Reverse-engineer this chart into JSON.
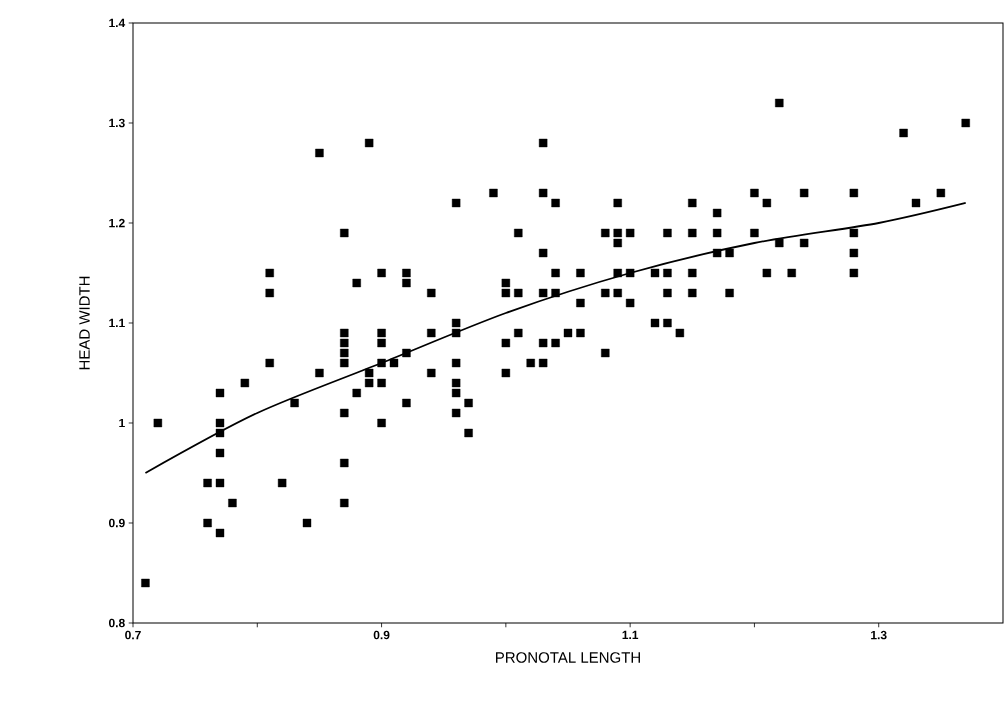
{
  "chart_data": {
    "type": "scatter",
    "xlabel": "PRONOTAL LENGTH",
    "ylabel": "HEAD WIDTH",
    "xlim": [
      0.7,
      1.4
    ],
    "ylim": [
      0.8,
      1.4
    ],
    "xticks": [
      0.7,
      {
        "value": 0.8,
        "label": null
      },
      0.9,
      {
        "value": 1.0,
        "label": null
      },
      1.1,
      {
        "value": 1.2,
        "label": null
      },
      1.3
    ],
    "yticks": [
      0.8,
      0.9,
      1,
      1.1,
      1.2,
      1.3,
      1.4
    ],
    "series": [
      {
        "marker": "square",
        "color": "#000000",
        "x": [
          0.71,
          0.72,
          0.76,
          0.76,
          0.77,
          0.77,
          0.77,
          0.77,
          0.77,
          0.77,
          0.78,
          0.79,
          0.81,
          0.81,
          0.81,
          0.82,
          0.83,
          0.84,
          0.85,
          0.85,
          0.87,
          0.87,
          0.87,
          0.87,
          0.87,
          0.87,
          0.87,
          0.87,
          0.88,
          0.88,
          0.89,
          0.89,
          0.89,
          0.9,
          0.9,
          0.9,
          0.9,
          0.9,
          0.9,
          0.91,
          0.92,
          0.92,
          0.92,
          0.92,
          0.94,
          0.94,
          0.94,
          0.96,
          0.96,
          0.96,
          0.96,
          0.96,
          0.96,
          0.96,
          0.97,
          0.97,
          0.99,
          1.0,
          1.0,
          1.0,
          1.0,
          1.01,
          1.01,
          1.01,
          1.02,
          1.03,
          1.03,
          1.03,
          1.03,
          1.03,
          1.03,
          1.04,
          1.04,
          1.04,
          1.04,
          1.05,
          1.06,
          1.06,
          1.06,
          1.08,
          1.08,
          1.08,
          1.09,
          1.09,
          1.09,
          1.09,
          1.09,
          1.1,
          1.1,
          1.1,
          1.12,
          1.12,
          1.13,
          1.13,
          1.13,
          1.13,
          1.14,
          1.15,
          1.15,
          1.15,
          1.15,
          1.17,
          1.17,
          1.17,
          1.18,
          1.18,
          1.2,
          1.2,
          1.21,
          1.21,
          1.22,
          1.22,
          1.23,
          1.24,
          1.24,
          1.28,
          1.28,
          1.28,
          1.28,
          1.32,
          1.33,
          1.35,
          1.37
        ],
        "values": [
          0.84,
          1.0,
          0.94,
          0.9,
          1.0,
          0.99,
          1.03,
          0.97,
          0.94,
          0.89,
          0.92,
          1.04,
          1.15,
          1.13,
          1.06,
          0.94,
          1.02,
          0.9,
          1.27,
          1.05,
          1.19,
          1.09,
          1.08,
          1.07,
          1.06,
          1.01,
          0.96,
          0.92,
          1.03,
          1.14,
          1.28,
          1.05,
          1.04,
          1.15,
          1.09,
          1.08,
          1.06,
          1.04,
          1.0,
          1.06,
          1.15,
          1.14,
          1.07,
          1.02,
          1.13,
          1.09,
          1.05,
          1.22,
          1.1,
          1.09,
          1.06,
          1.04,
          1.03,
          1.01,
          1.02,
          0.99,
          1.23,
          1.14,
          1.13,
          1.08,
          1.05,
          1.19,
          1.13,
          1.09,
          1.06,
          1.28,
          1.23,
          1.17,
          1.13,
          1.08,
          1.06,
          1.22,
          1.15,
          1.13,
          1.08,
          1.09,
          1.15,
          1.12,
          1.09,
          1.19,
          1.13,
          1.07,
          1.22,
          1.19,
          1.18,
          1.15,
          1.13,
          1.19,
          1.15,
          1.12,
          1.15,
          1.1,
          1.19,
          1.15,
          1.13,
          1.1,
          1.09,
          1.22,
          1.19,
          1.15,
          1.13,
          1.21,
          1.19,
          1.17,
          1.17,
          1.13,
          1.23,
          1.19,
          1.22,
          1.15,
          1.32,
          1.18,
          1.15,
          1.23,
          1.18,
          1.23,
          1.19,
          1.17,
          1.15,
          1.29,
          1.22,
          1.23,
          1.3
        ]
      },
      {
        "type": "line",
        "marker": "none",
        "color": "#000000",
        "x": [
          0.71,
          0.8,
          0.9,
          1.0,
          1.1,
          1.2,
          1.3,
          1.37
        ],
        "values": [
          0.95,
          1.01,
          1.06,
          1.11,
          1.15,
          1.18,
          1.2,
          1.22
        ]
      }
    ]
  }
}
